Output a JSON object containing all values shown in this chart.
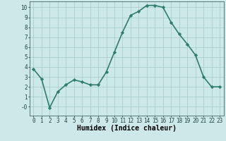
{
  "x": [
    0,
    1,
    2,
    3,
    4,
    5,
    6,
    7,
    8,
    9,
    10,
    11,
    12,
    13,
    14,
    15,
    16,
    17,
    18,
    19,
    20,
    21,
    22,
    23
  ],
  "y": [
    3.8,
    2.8,
    -0.1,
    1.5,
    2.2,
    2.7,
    2.5,
    2.2,
    2.2,
    3.5,
    5.5,
    7.5,
    9.2,
    9.6,
    10.2,
    10.2,
    10.0,
    8.5,
    7.3,
    6.3,
    5.2,
    3.0,
    2.0,
    2.0
  ],
  "line_color": "#2e7d6e",
  "marker": "D",
  "markersize": 2.2,
  "linewidth": 1.2,
  "bg_color": "#cce8e8",
  "grid_color": "#aacece",
  "xlabel": "Humidex (Indice chaleur)",
  "xlabel_fontsize": 7,
  "xlim": [
    -0.5,
    23.5
  ],
  "ylim": [
    -0.9,
    10.6
  ],
  "yticks": [
    0,
    1,
    2,
    3,
    4,
    5,
    6,
    7,
    8,
    9,
    10
  ],
  "ytick_labels": [
    "-0",
    "1",
    "2",
    "3",
    "4",
    "5",
    "6",
    "7",
    "8",
    "9",
    "10"
  ],
  "xticks": [
    0,
    1,
    2,
    3,
    4,
    5,
    6,
    7,
    8,
    9,
    10,
    11,
    12,
    13,
    14,
    15,
    16,
    17,
    18,
    19,
    20,
    21,
    22,
    23
  ],
  "tick_fontsize": 5.5
}
